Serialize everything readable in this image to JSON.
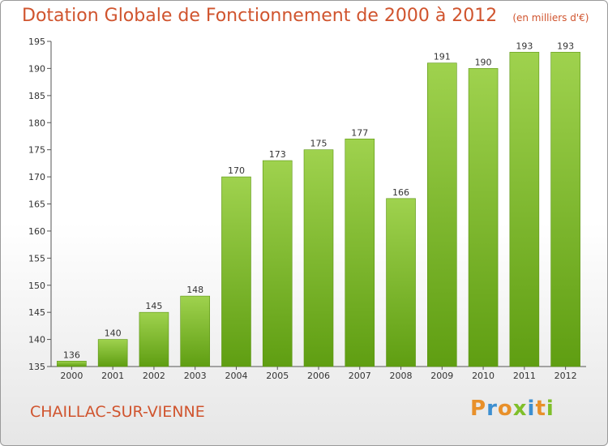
{
  "chart_data": {
    "type": "bar",
    "title": "Dotation Globale de Fonctionnement de 2000 à 2012",
    "subtitle": "(en milliers d'€)",
    "categories": [
      "2000",
      "2001",
      "2002",
      "2003",
      "2004",
      "2005",
      "2006",
      "2007",
      "2008",
      "2009",
      "2010",
      "2011",
      "2012"
    ],
    "values": [
      136,
      140,
      145,
      148,
      170,
      173,
      175,
      177,
      166,
      191,
      190,
      193,
      193
    ],
    "ylim": [
      135,
      195
    ],
    "yticks": [
      135,
      140,
      145,
      150,
      155,
      160,
      165,
      170,
      175,
      180,
      185,
      190,
      195
    ],
    "grid": false,
    "bar_color": "#7fbf2a"
  },
  "footer": {
    "city": "CHAILLAC-SUR-VIENNE",
    "logo": "Proxiti"
  },
  "colors": {
    "title": "#d0542e",
    "logo": [
      "#e8902a",
      "#3d8fd1",
      "#e8902a",
      "#7fbf2a",
      "#3d8fd1",
      "#e8902a",
      "#7fbf2a"
    ]
  }
}
